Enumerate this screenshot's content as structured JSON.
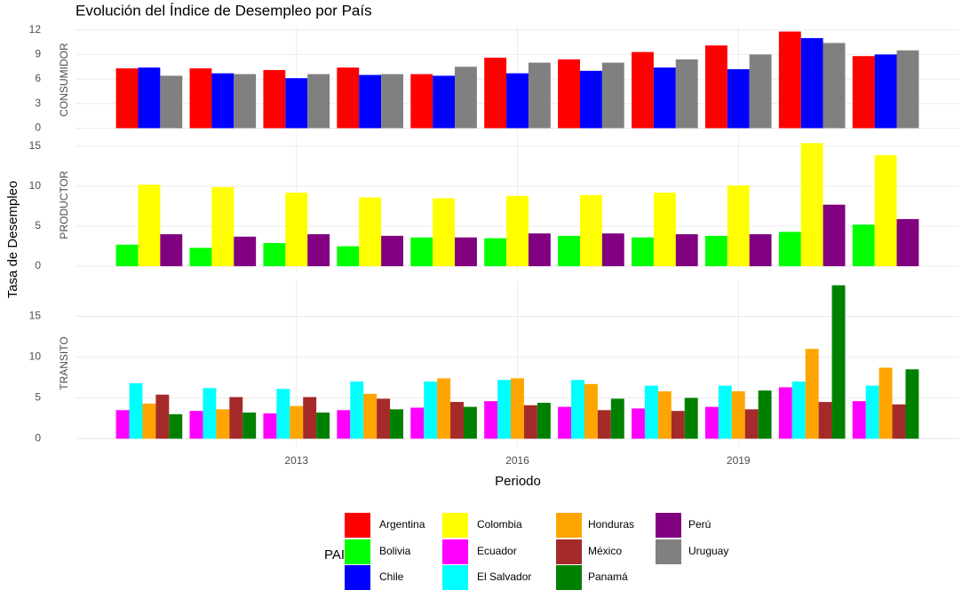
{
  "chart_data": {
    "type": "bar",
    "title": "Evolución del Índice de Desempleo por País",
    "x_label": "Periodo",
    "y_label": "Tasa de Desempleo",
    "legend_title": "PAIS",
    "x": [
      2011,
      2012,
      2013,
      2014,
      2015,
      2016,
      2017,
      2018,
      2019,
      2020,
      2021
    ],
    "xlim": [
      2010,
      2022
    ],
    "xticks": [
      2013,
      2016,
      2019
    ],
    "grid": true,
    "facets": [
      {
        "name": "CONSUMIDOR",
        "ylim": [
          -0.6,
          12.4
        ],
        "yticks": [
          0,
          3,
          6,
          9,
          12
        ],
        "series": [
          {
            "name": "Argentina",
            "color": "#ff0000",
            "values": [
              7.3,
              7.3,
              7.1,
              7.4,
              6.6,
              8.6,
              8.4,
              9.3,
              10.1,
              11.8,
              8.8
            ]
          },
          {
            "name": "Chile",
            "color": "#0000ff",
            "values": [
              7.4,
              6.7,
              6.1,
              6.5,
              6.4,
              6.7,
              7.0,
              7.4,
              7.2,
              11.0,
              9.0
            ]
          },
          {
            "name": "Uruguay",
            "color": "#808080",
            "values": [
              6.4,
              6.6,
              6.6,
              6.6,
              7.5,
              8.0,
              8.0,
              8.4,
              9.0,
              10.4,
              9.5
            ]
          }
        ]
      },
      {
        "name": "PRODUCTOR",
        "ylim": [
          -0.77,
          16.1
        ],
        "yticks": [
          0,
          5,
          10,
          15
        ],
        "series": [
          {
            "name": "Bolivia",
            "color": "#00ff00",
            "values": [
              2.7,
              2.3,
              2.9,
              2.5,
              3.6,
              3.5,
              3.8,
              3.6,
              3.8,
              4.3,
              5.2
            ]
          },
          {
            "name": "Colombia",
            "color": "#ffff00",
            "values": [
              10.2,
              9.9,
              9.2,
              8.6,
              8.5,
              8.8,
              8.9,
              9.2,
              10.1,
              15.4,
              13.9
            ]
          },
          {
            "name": "Perú",
            "color": "#800080",
            "values": [
              4.0,
              3.7,
              4.0,
              3.8,
              3.6,
              4.1,
              4.1,
              4.0,
              4.0,
              7.7,
              5.9
            ]
          }
        ]
      },
      {
        "name": "TRANSITO",
        "ylim": [
          -0.93,
          19.4
        ],
        "yticks": [
          0,
          5,
          10,
          15
        ],
        "series": [
          {
            "name": "Ecuador",
            "color": "#ff00ff",
            "values": [
              3.5,
              3.4,
              3.1,
              3.5,
              3.8,
              4.6,
              3.9,
              3.7,
              3.9,
              6.3,
              4.6
            ]
          },
          {
            "name": "El Salvador",
            "color": "#00ffff",
            "values": [
              6.8,
              6.2,
              6.1,
              7.0,
              7.0,
              7.2,
              7.2,
              6.5,
              6.5,
              7.0,
              6.5
            ]
          },
          {
            "name": "Honduras",
            "color": "#ffa500",
            "values": [
              4.3,
              3.6,
              4.0,
              5.5,
              7.4,
              7.4,
              6.7,
              5.8,
              5.8,
              11.0,
              8.7
            ]
          },
          {
            "name": "México",
            "color": "#a52a2a",
            "values": [
              5.4,
              5.1,
              5.1,
              4.9,
              4.5,
              4.1,
              3.5,
              3.4,
              3.6,
              4.5,
              4.2
            ]
          },
          {
            "name": "Panamá",
            "color": "#008000",
            "values": [
              3.0,
              3.2,
              3.2,
              3.6,
              3.9,
              4.4,
              4.9,
              5.0,
              5.9,
              18.8,
              8.5
            ]
          }
        ]
      }
    ]
  }
}
